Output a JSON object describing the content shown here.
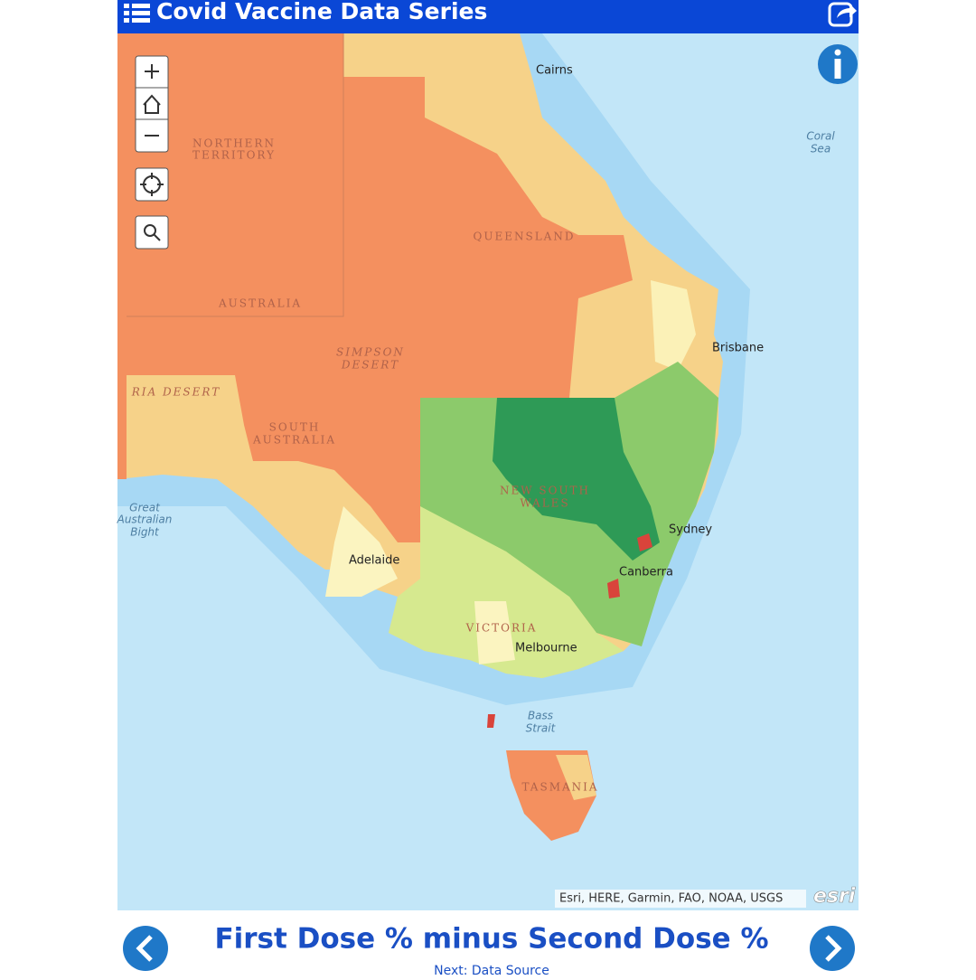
{
  "header": {
    "title": "Covid Vaccine Data Series"
  },
  "map": {
    "labels": {
      "cairns": "Cairns",
      "coral_sea": [
        "Coral",
        "Sea"
      ],
      "northern_territory": [
        "NORTHERN",
        "TERRITORY"
      ],
      "queensland": "QUEENSLAND",
      "australia": "AUSTRALIA",
      "simpson_desert": [
        "SIMPSON",
        "DESERT"
      ],
      "desert": "RIA DESERT",
      "brisbane": "Brisbane",
      "south_australia": [
        "SOUTH",
        "AUSTRALIA"
      ],
      "bight": [
        "Great",
        "Australian",
        "Bight"
      ],
      "nsw": [
        "NEW SOUTH",
        "WALES"
      ],
      "sydney": "Sydney",
      "canberra": "Canberra",
      "adelaide": "Adelaide",
      "victoria": "VICTORIA",
      "melbourne": "Melbourne",
      "bass_strait": [
        "Bass",
        "Strait"
      ],
      "tasmania": "TASMANIA"
    },
    "attribution": "Esri, HERE, Garmin, FAO, NOAA, USGS",
    "logo": "esri"
  },
  "footer": {
    "title": "First Dose % minus Second Dose %",
    "subtitle": "Next: Data Source"
  }
}
